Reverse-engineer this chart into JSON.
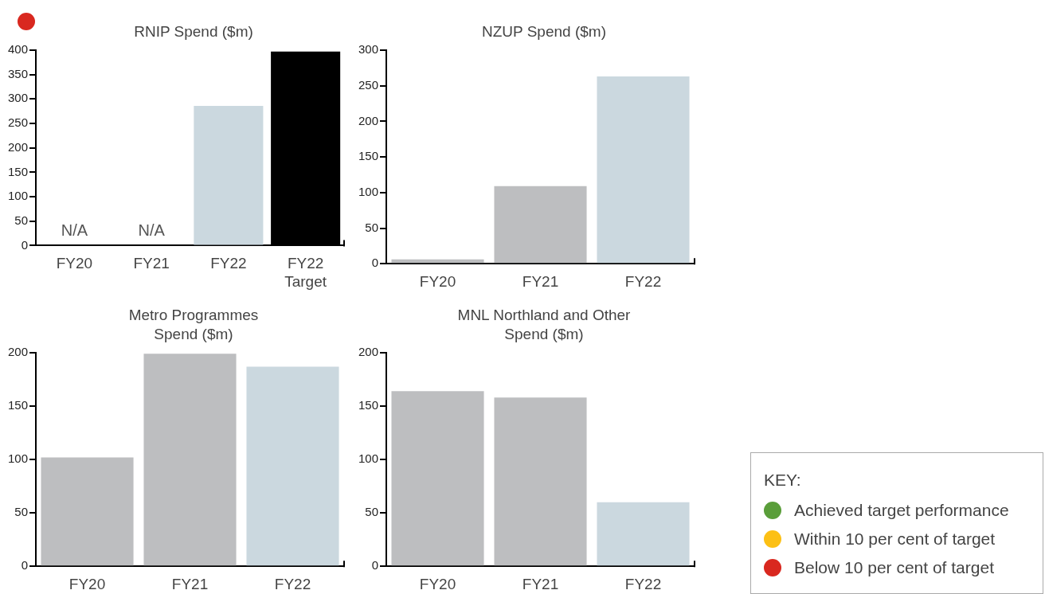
{
  "chart_data": [
    {
      "type": "bar",
      "title": "RNIP Spend ($m)",
      "categories": [
        "FY20",
        "FY21",
        "FY22",
        "FY22 Target"
      ],
      "values": [
        null,
        null,
        286,
        397
      ],
      "colors": [
        "#bdbec0",
        "#bdbec0",
        "#cbd8df",
        "#000000"
      ],
      "value_labels": [
        "N/A",
        "N/A",
        null,
        null
      ],
      "ylim": [
        0,
        400
      ],
      "yticks": [
        0,
        50,
        100,
        150,
        200,
        250,
        300,
        350,
        400
      ],
      "grid": false,
      "legend": false
    },
    {
      "type": "bar",
      "title": "NZUP Spend ($m)",
      "categories": [
        "FY20",
        "FY21",
        "FY22"
      ],
      "values": [
        6,
        109,
        263
      ],
      "colors": [
        "#bdbec0",
        "#bdbec0",
        "#cbd8df"
      ],
      "ylim": [
        0,
        300
      ],
      "yticks": [
        0,
        50,
        100,
        150,
        200,
        250,
        300
      ],
      "grid": false,
      "legend": false
    },
    {
      "type": "bar",
      "title": "Metro Programmes Spend ($m)",
      "categories": [
        "FY20",
        "FY21",
        "FY22"
      ],
      "values": [
        102,
        199,
        187
      ],
      "colors": [
        "#bdbec0",
        "#bdbec0",
        "#cbd8df"
      ],
      "ylim": [
        0,
        200
      ],
      "yticks": [
        0,
        50,
        100,
        150,
        200
      ],
      "grid": false,
      "legend": false
    },
    {
      "type": "bar",
      "title": "MNL Northland and Other Spend ($m)",
      "categories": [
        "FY20",
        "FY21",
        "FY22"
      ],
      "values": [
        164,
        158,
        60
      ],
      "colors": [
        "#bdbec0",
        "#bdbec0",
        "#cbd8df"
      ],
      "ylim": [
        0,
        200
      ],
      "yticks": [
        0,
        50,
        100,
        150,
        200
      ],
      "grid": false,
      "legend": false
    },
    {
      "type": "other",
      "title": "KEY:",
      "annotations": [
        "Achieved target performance",
        "Within 10 per cent of target",
        "Below 10 per cent of target"
      ]
    }
  ]
}
